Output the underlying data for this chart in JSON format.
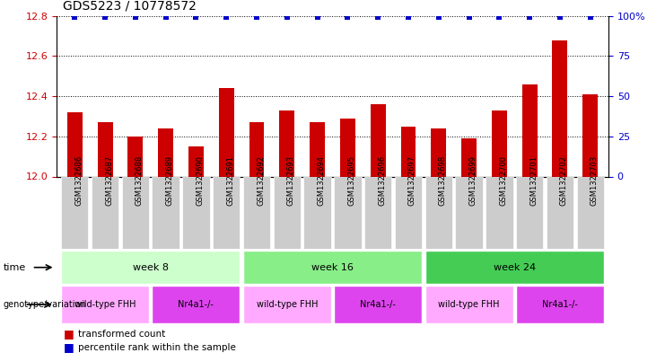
{
  "title": "GDS5223 / 10778572",
  "samples": [
    "GSM1322686",
    "GSM1322687",
    "GSM1322688",
    "GSM1322689",
    "GSM1322690",
    "GSM1322691",
    "GSM1322692",
    "GSM1322693",
    "GSM1322694",
    "GSM1322695",
    "GSM1322696",
    "GSM1322697",
    "GSM1322698",
    "GSM1322699",
    "GSM1322700",
    "GSM1322701",
    "GSM1322702",
    "GSM1322703"
  ],
  "bar_values": [
    12.32,
    12.27,
    12.2,
    12.24,
    12.15,
    12.44,
    12.27,
    12.33,
    12.27,
    12.29,
    12.36,
    12.25,
    12.24,
    12.19,
    12.33,
    12.46,
    12.68,
    12.41
  ],
  "ylim_left": [
    12.0,
    12.8
  ],
  "ylim_right": [
    0,
    100
  ],
  "yticks_left": [
    12.0,
    12.2,
    12.4,
    12.6,
    12.8
  ],
  "yticks_right": [
    0,
    25,
    50,
    75,
    100
  ],
  "bar_color": "#cc0000",
  "percentile_color": "#0000cc",
  "time_groups": [
    {
      "start": 0,
      "end": 5,
      "label": "week 8",
      "color": "#ccffcc"
    },
    {
      "start": 6,
      "end": 11,
      "label": "week 16",
      "color": "#88ee88"
    },
    {
      "start": 12,
      "end": 17,
      "label": "week 24",
      "color": "#44cc55"
    }
  ],
  "geno_groups": [
    {
      "start": 0,
      "end": 2,
      "label": "wild-type FHH",
      "color": "#ffaaff"
    },
    {
      "start": 3,
      "end": 5,
      "label": "Nr4a1-/-",
      "color": "#dd44ee"
    },
    {
      "start": 6,
      "end": 8,
      "label": "wild-type FHH",
      "color": "#ffaaff"
    },
    {
      "start": 9,
      "end": 11,
      "label": "Nr4a1-/-",
      "color": "#dd44ee"
    },
    {
      "start": 12,
      "end": 14,
      "label": "wild-type FHH",
      "color": "#ffaaff"
    },
    {
      "start": 15,
      "end": 17,
      "label": "Nr4a1-/-",
      "color": "#dd44ee"
    }
  ],
  "legend_bar_label": "transformed count",
  "legend_pct_label": "percentile rank within the sample",
  "time_row_label": "time",
  "genotype_row_label": "genotype/variation",
  "axis_color_left": "#cc0000",
  "axis_color_right": "#0000cc",
  "sample_box_color": "#cccccc",
  "title_fontsize": 10,
  "bar_fontsize": 7,
  "annot_fontsize": 8
}
